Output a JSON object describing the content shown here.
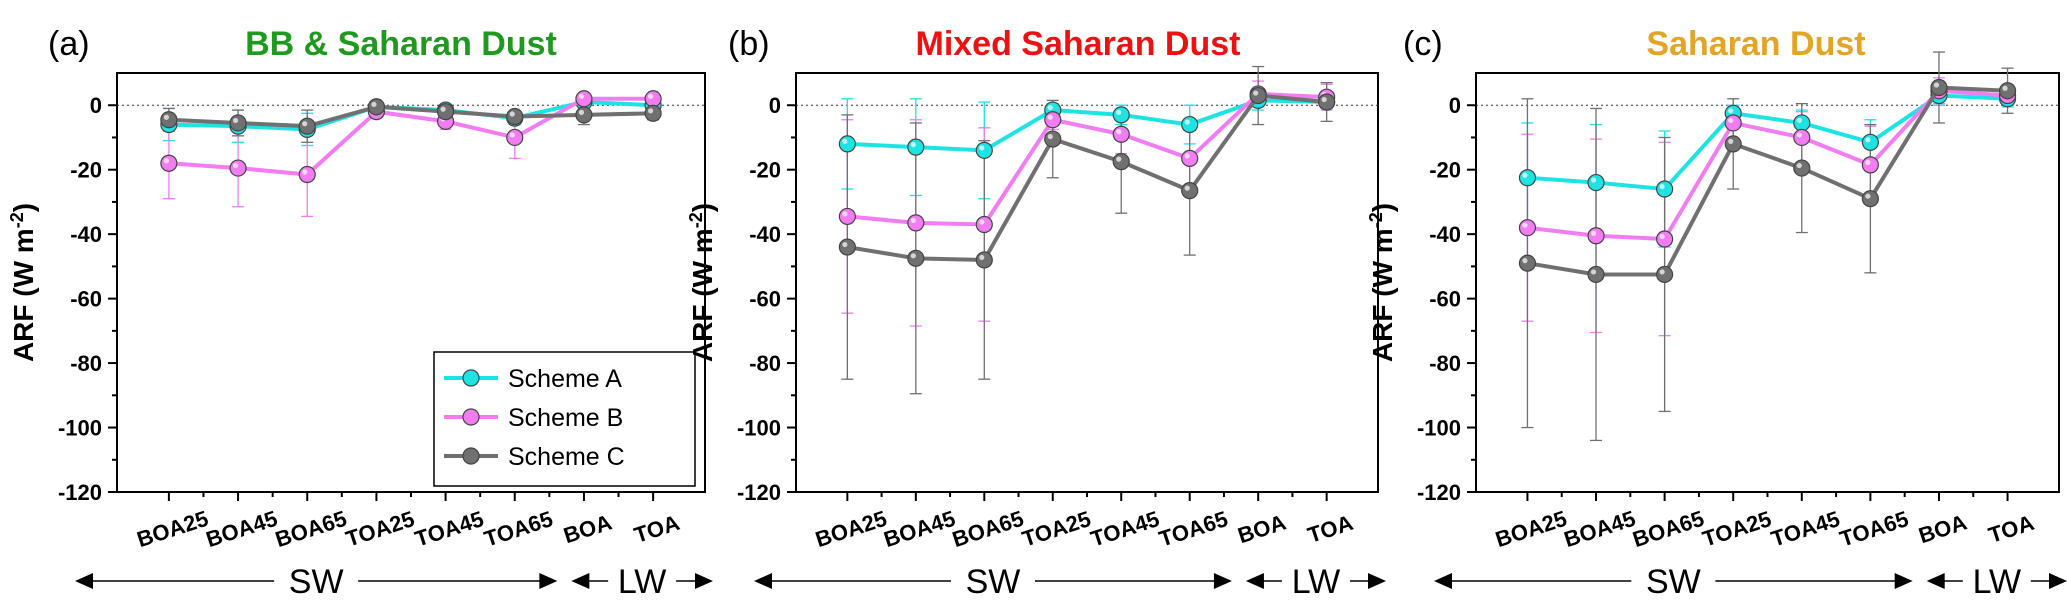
{
  "chart_data": [
    {
      "type": "line",
      "panel_label": "(a)",
      "title": "BB & Saharan Dust",
      "title_color": "#1f9a1f",
      "ylabel": "ARF (W m",
      "ylabel_sup": "-2",
      "ylabel_close": ")",
      "ylim": [
        -120,
        10
      ],
      "yticks": [
        0,
        -20,
        -40,
        -60,
        -80,
        -100,
        -120
      ],
      "categories": [
        "BOA25",
        "BOA45",
        "BOA65",
        "TOA25",
        "TOA45",
        "TOA65",
        "BOA",
        "TOA"
      ],
      "zero_line": true,
      "legend": {
        "placement": "bottom-right",
        "visible": true
      },
      "series": [
        {
          "name": "Scheme A",
          "color": "#1de3e3",
          "values": [
            -6,
            -6.5,
            -7.5,
            -0.5,
            -1.5,
            -4,
            1,
            0
          ],
          "errors": [
            5,
            5,
            5,
            1,
            1.5,
            2,
            2,
            1.5
          ]
        },
        {
          "name": "Scheme B",
          "color": "#f27cf2",
          "values": [
            -18,
            -19.5,
            -21.5,
            -2,
            -5,
            -10,
            2,
            2
          ],
          "errors": [
            11,
            12,
            13,
            1.5,
            2.5,
            6.5,
            1.5,
            1.5
          ]
        },
        {
          "name": "Scheme C",
          "color": "#707070",
          "values": [
            -4.5,
            -5.5,
            -6.5,
            -0.5,
            -2,
            -3.5,
            -3,
            -2.5
          ],
          "errors": [
            3.5,
            4,
            5,
            1,
            1.5,
            1.5,
            3,
            2
          ]
        }
      ],
      "bands": [
        {
          "label": "SW",
          "from": 0,
          "to": 5
        },
        {
          "label": "LW",
          "from": 6,
          "to": 7
        }
      ]
    },
    {
      "type": "line",
      "panel_label": "(b)",
      "title": "Mixed Saharan Dust",
      "title_color": "#ee1111",
      "ylabel": "ARF (W m",
      "ylabel_sup": "-2",
      "ylabel_close": ")",
      "ylim": [
        -120,
        10
      ],
      "yticks": [
        0,
        -20,
        -40,
        -60,
        -80,
        -100,
        -120
      ],
      "categories": [
        "BOA25",
        "BOA45",
        "BOA65",
        "TOA25",
        "TOA45",
        "TOA65",
        "BOA",
        "TOA"
      ],
      "zero_line": true,
      "legend": {
        "visible": false
      },
      "series": [
        {
          "name": "Scheme A",
          "color": "#1de3e3",
          "values": [
            -12,
            -13,
            -14,
            -1.5,
            -3,
            -6,
            1.5,
            1
          ],
          "errors": [
            14,
            15,
            15,
            2,
            3,
            6,
            3,
            2
          ]
        },
        {
          "name": "Scheme B",
          "color": "#f27cf2",
          "values": [
            -34.5,
            -36.5,
            -37,
            -4.5,
            -9,
            -16.5,
            3.5,
            2.5
          ],
          "errors": [
            30,
            32,
            30,
            3,
            6,
            10,
            4,
            4
          ]
        },
        {
          "name": "Scheme C",
          "color": "#707070",
          "values": [
            -44,
            -47.5,
            -48,
            -10.5,
            -17.5,
            -26.5,
            3,
            1
          ],
          "errors": [
            41,
            42,
            37,
            12,
            16,
            20,
            9,
            6
          ]
        }
      ],
      "bands": [
        {
          "label": "SW",
          "from": 0,
          "to": 5
        },
        {
          "label": "LW",
          "from": 6,
          "to": 7
        }
      ]
    },
    {
      "type": "line",
      "panel_label": "(c)",
      "title": "Saharan Dust",
      "title_color": "#e3a526",
      "ylabel": "ARF (W m",
      "ylabel_sup": "-2",
      "ylabel_close": ")",
      "ylim": [
        -120,
        10
      ],
      "yticks": [
        0,
        -20,
        -40,
        -60,
        -80,
        -100,
        -120
      ],
      "categories": [
        "BOA25",
        "BOA45",
        "BOA65",
        "TOA25",
        "TOA45",
        "TOA65",
        "BOA",
        "TOA"
      ],
      "zero_line": true,
      "legend": {
        "visible": false
      },
      "series": [
        {
          "name": "Scheme A",
          "color": "#1de3e3",
          "values": [
            -22.5,
            -24,
            -26,
            -2.5,
            -5.5,
            -11.5,
            3,
            2
          ],
          "errors": [
            17,
            18,
            18,
            2.5,
            4,
            7,
            3,
            2.5
          ]
        },
        {
          "name": "Scheme B",
          "color": "#f27cf2",
          "values": [
            -38,
            -40.5,
            -41.5,
            -5.5,
            -10,
            -18.5,
            4.5,
            3
          ],
          "errors": [
            29,
            30,
            30,
            5,
            8,
            12,
            4,
            3
          ]
        },
        {
          "name": "Scheme C",
          "color": "#707070",
          "values": [
            -49,
            -52.5,
            -52.5,
            -12,
            -19.5,
            -29,
            5.5,
            4.5
          ],
          "errors": [
            51,
            51.5,
            42.5,
            14,
            20,
            23,
            11,
            7
          ]
        }
      ],
      "bands": [
        {
          "label": "SW",
          "from": 0,
          "to": 5
        },
        {
          "label": "LW",
          "from": 6,
          "to": 7
        }
      ]
    }
  ]
}
